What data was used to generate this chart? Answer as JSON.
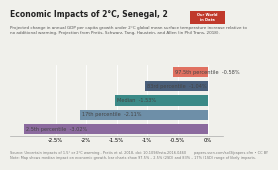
{
  "title": "Economic Impacts of 2°C, Senegal, 2",
  "subtitle": "Projected change in annual GDP per capita growth under 2°C global mean surface temperature increase relative to\nno additional warming. Projection from Pretis, Schwarz, Tang, Haustein, and Allen (in Phil Trans, 2018).",
  "bars": [
    {
      "label": "97.5th percentile",
      "value": -0.58,
      "color": "#e07060"
    },
    {
      "label": "83rd percentile",
      "value": -1.04,
      "color": "#4a5f7a"
    },
    {
      "label": "Median",
      "value": -1.53,
      "color": "#3b8a87"
    },
    {
      "label": "17th percentile",
      "value": -2.11,
      "color": "#6e8fa8"
    },
    {
      "label": "2.5th percentile",
      "value": -3.02,
      "color": "#8b6a9e"
    }
  ],
  "xlim": [
    -3.25,
    0.25
  ],
  "xticks": [
    -2.5,
    -2.0,
    -1.5,
    -1.0,
    -0.5,
    0.0
  ],
  "xticklabels": [
    "-2.5%",
    "-2%",
    "-1.5%",
    "-1%",
    "-0.5%",
    "0%"
  ],
  "background_color": "#f0f0eb",
  "bar_height": 0.72,
  "title_fontsize": 5.5,
  "subtitle_fontsize": 3.0,
  "label_fontsize": 3.6,
  "tick_fontsize": 3.8,
  "footnote_line1": "Source: Uncertain impacts of 1.5° or 2°C warming - Pretis et al. 2018, doi: 10.1098/rsta.2016.0460       papers.ssrn.com/sol3/papers.cfm • CC BY",
  "footnote_line2": "Note: Map shows median impact on economic growth, bar charts show 97.5% – 2.5% (2SD) and 83% – 17% (1SD) range of likely impacts.",
  "footnote_fontsize": 2.5,
  "logo_text": "Our World\nin Data",
  "logo_color": "#c0392b"
}
